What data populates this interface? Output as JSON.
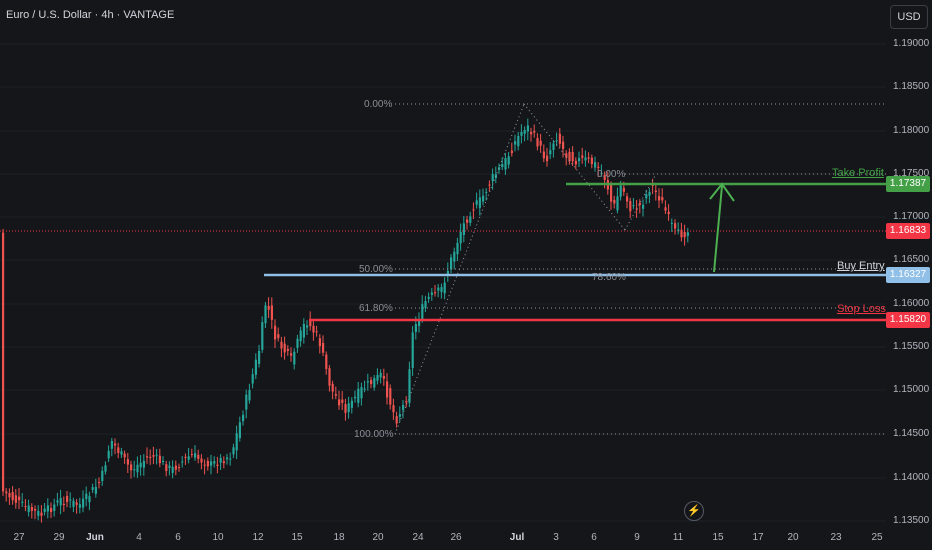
{
  "header": {
    "symbol_title": "Euro / U.S. Dollar · 4h · VANTAGE",
    "currency_button": "USD"
  },
  "price_axis": {
    "labels": [
      "1.19000",
      "1.18500",
      "1.18000",
      "1.17500",
      "1.17000",
      "1.16500",
      "1.16000",
      "1.15500",
      "1.15000",
      "1.14500",
      "1.14000",
      "1.13500"
    ],
    "badges": [
      {
        "name": "take-profit-price",
        "value": "1.17387",
        "color": "#43a047"
      },
      {
        "name": "current-price",
        "value": "1.16833",
        "color": "#f23645"
      },
      {
        "name": "buy-entry-price",
        "value": "1.16327",
        "color": "#90bfe8"
      },
      {
        "name": "stop-loss-price",
        "value": "1.15820",
        "color": "#f23645"
      }
    ]
  },
  "time_axis": {
    "labels": [
      {
        "text": "27",
        "bold": false
      },
      {
        "text": "29",
        "bold": false
      },
      {
        "text": "Jun",
        "bold": true
      },
      {
        "text": "4",
        "bold": false
      },
      {
        "text": "6",
        "bold": false
      },
      {
        "text": "10",
        "bold": false
      },
      {
        "text": "12",
        "bold": false
      },
      {
        "text": "15",
        "bold": false
      },
      {
        "text": "18",
        "bold": false
      },
      {
        "text": "20",
        "bold": false
      },
      {
        "text": "24",
        "bold": false
      },
      {
        "text": "26",
        "bold": false
      },
      {
        "text": "Jul",
        "bold": true
      },
      {
        "text": "3",
        "bold": false
      },
      {
        "text": "6",
        "bold": false
      },
      {
        "text": "9",
        "bold": false
      },
      {
        "text": "11",
        "bold": false
      },
      {
        "text": "15",
        "bold": false
      },
      {
        "text": "17",
        "bold": false
      },
      {
        "text": "20",
        "bold": false
      },
      {
        "text": "23",
        "bold": false
      },
      {
        "text": "25",
        "bold": false
      }
    ]
  },
  "fib_labels": {
    "main_0": "0.00%",
    "main_50": "50.00%",
    "main_618": "61.80%",
    "main_100": "100.00%",
    "small_0": "0.00%",
    "small_786": "78.60%"
  },
  "levels": {
    "take_profit": "Take Profit",
    "buy_entry": "Buy Entry",
    "stop_loss": "Stop Loss"
  },
  "colors": {
    "background": "#141619",
    "bull": "#26a69a",
    "bear": "#ef5350",
    "take_profit": "#43a047",
    "buy_entry": "#90bfe8",
    "stop_loss": "#f23645",
    "arrow": "#4caf50"
  },
  "icons": {
    "bolt": "lightning-icon"
  }
}
